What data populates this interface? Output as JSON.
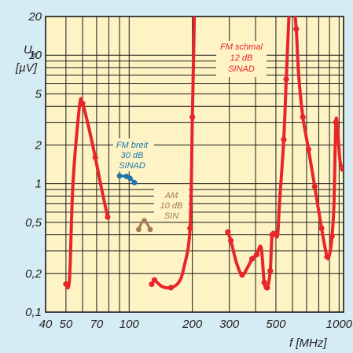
{
  "chart_data": {
    "type": "line",
    "title": "",
    "xscale": "log",
    "yscale": "log",
    "xlim": [
      40,
      1050
    ],
    "ylim": [
      0.1,
      20
    ],
    "xlabel": "f [MHz]",
    "ylabel": {
      "symbol": "U",
      "subscript": "e",
      "unit": "[µV]"
    },
    "xticks": [
      40,
      50,
      70,
      100,
      200,
      300,
      500,
      1000
    ],
    "xtick_labels": [
      "40",
      "50",
      "70",
      "100",
      "200",
      "300",
      "500",
      "1000"
    ],
    "yticks": [
      0.1,
      0.2,
      0.5,
      1,
      2,
      5,
      10,
      20
    ],
    "ytick_labels": [
      "0,1",
      "0,2",
      "0,5",
      "1",
      "2",
      "5",
      "10",
      "20"
    ],
    "grid": true,
    "colors": {
      "plot_background": "#fdf3c4",
      "frame_background": "#d6ecf4",
      "grid": "#1a1a1a",
      "fm_narrow": "#e8262a",
      "fm_wide": "#1f75ad",
      "am": "#a47b55"
    },
    "series": [
      {
        "name": "FM schmal 12 dB SINAD",
        "label_lines": [
          "FM schmal",
          "12 dB",
          "SINAD"
        ],
        "color": "#e8262a",
        "segments": [
          [
            [
              50,
              0.165
            ],
            [
              52,
              0.18
            ],
            [
              54,
              1.0
            ],
            [
              58,
              4.0
            ],
            [
              60,
              4.2
            ],
            [
              64,
              2.8
            ],
            [
              69,
              1.6
            ],
            [
              74,
              0.9
            ],
            [
              79,
              0.55
            ]
          ],
          [
            [
              128,
              0.165
            ],
            [
              132,
              0.178
            ],
            [
              137,
              0.168
            ],
            [
              145,
              0.157
            ],
            [
              158,
              0.155
            ],
            [
              172,
              0.17
            ],
            [
              182,
              0.22
            ],
            [
              195,
              0.45
            ],
            [
              200,
              3.3
            ],
            [
              205,
              25
            ]
          ],
          [
            [
              295,
              0.42
            ],
            [
              305,
              0.36
            ],
            [
              325,
              0.24
            ],
            [
              345,
              0.195
            ],
            [
              365,
              0.22
            ],
            [
              385,
              0.26
            ],
            [
              405,
              0.28
            ],
            [
              425,
              0.32
            ],
            [
              440,
              0.17
            ],
            [
              455,
              0.155
            ],
            [
              470,
              0.21
            ],
            [
              480,
              0.4
            ],
            [
              500,
              0.4
            ],
            [
              510,
              0.4
            ],
            [
              520,
              0.7
            ],
            [
              545,
              2.2
            ],
            [
              560,
              6.5
            ],
            [
              580,
              25
            ]
          ],
          [
            [
              608,
              25
            ],
            [
              625,
              16
            ],
            [
              642,
              7
            ],
            [
              672,
              3.3
            ],
            [
              715,
              1.85
            ],
            [
              765,
              0.95
            ],
            [
              825,
              0.45
            ],
            [
              875,
              0.27
            ],
            [
              900,
              0.28
            ],
            [
              925,
              0.39
            ],
            [
              945,
              0.7
            ],
            [
              965,
              3.0
            ],
            [
              985,
              2.5
            ],
            [
              1010,
              1.5
            ],
            [
              1040,
              1.3
            ]
          ]
        ],
        "points": [
          [
            50,
            0.165
          ],
          [
            60,
            4.2
          ],
          [
            69,
            1.6
          ],
          [
            79,
            0.55
          ],
          [
            128,
            0.165
          ],
          [
            132,
            0.178
          ],
          [
            158,
            0.155
          ],
          [
            195,
            0.45
          ],
          [
            200,
            3.3
          ],
          [
            295,
            0.42
          ],
          [
            305,
            0.36
          ],
          [
            345,
            0.195
          ],
          [
            385,
            0.26
          ],
          [
            405,
            0.28
          ],
          [
            440,
            0.17
          ],
          [
            455,
            0.155
          ],
          [
            470,
            0.21
          ],
          [
            480,
            0.4
          ],
          [
            500,
            0.4
          ],
          [
            545,
            2.2
          ],
          [
            560,
            6.5
          ],
          [
            625,
            16
          ],
          [
            672,
            3.3
          ],
          [
            715,
            1.85
          ],
          [
            765,
            0.95
          ],
          [
            825,
            0.45
          ],
          [
            875,
            0.27
          ],
          [
            925,
            0.39
          ],
          [
            965,
            3.0
          ],
          [
            1040,
            1.3
          ]
        ]
      },
      {
        "name": "FM breit 30 dB SINAD",
        "label_lines": [
          "FM breit",
          "30 dB",
          "SINAD"
        ],
        "color": "#1f75ad",
        "segments": [
          [
            [
              90,
              1.15
            ],
            [
              97,
              1.14
            ],
            [
              101,
              1.1
            ],
            [
              106,
              1.02
            ]
          ]
        ],
        "points": [
          [
            90,
            1.15
          ],
          [
            97,
            1.14
          ],
          [
            101,
            1.1
          ],
          [
            106,
            1.02
          ]
        ]
      },
      {
        "name": "AM 10 dB SIN",
        "label_lines": [
          "AM",
          "10 dB",
          "SIN"
        ],
        "color": "#a47b55",
        "segments": [
          [
            [
              111,
              0.44
            ],
            [
              115,
              0.5
            ],
            [
              118,
              0.515
            ],
            [
              121,
              0.495
            ],
            [
              126,
              0.44
            ]
          ]
        ],
        "points": [
          [
            111,
            0.44
          ],
          [
            118,
            0.515
          ],
          [
            126,
            0.44
          ]
        ]
      }
    ]
  }
}
